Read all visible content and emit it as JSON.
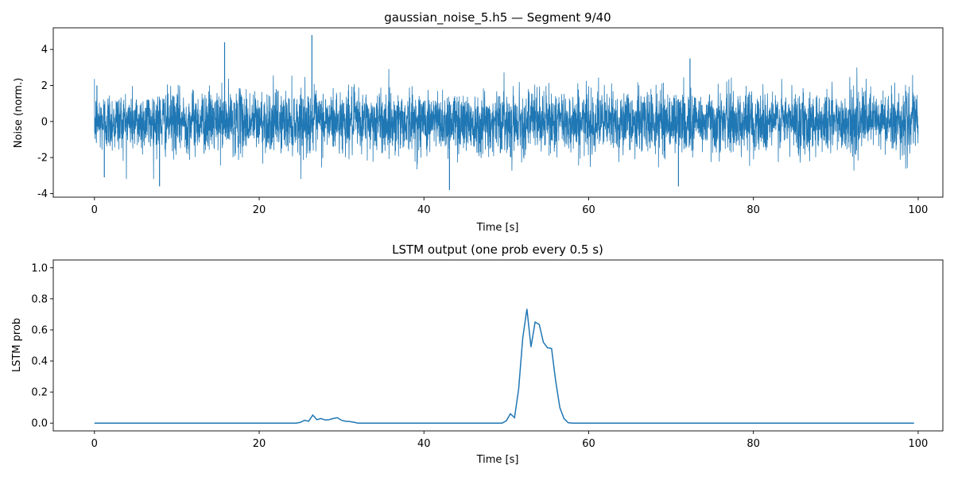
{
  "chart_data": [
    {
      "type": "line",
      "title": "gaussian_noise_5.h5 — Segment 9/40",
      "xlabel": "Time [s]",
      "ylabel": "Noise (norm.)",
      "xlim": [
        -5,
        103
      ],
      "ylim": [
        -4.2,
        5.2
      ],
      "xticks": [
        0,
        20,
        40,
        60,
        80,
        100
      ],
      "yticks": [
        -4,
        -2,
        0,
        2,
        4
      ],
      "color": "#1f77b4",
      "series": [
        {
          "name": "noise",
          "sample_interval_s": 0.02,
          "duration_s": 100,
          "distribution": "gaussian",
          "std": 0.85,
          "spikes": [
            {
              "t": 0.3,
              "y": 2.0
            },
            {
              "t": 1.2,
              "y": -3.1
            },
            {
              "t": 7.9,
              "y": -3.6
            },
            {
              "t": 15.8,
              "y": 4.4
            },
            {
              "t": 26.4,
              "y": 4.8
            },
            {
              "t": 43.1,
              "y": -3.8
            },
            {
              "t": 70.9,
              "y": -3.6
            },
            {
              "t": 72.3,
              "y": 3.5
            }
          ]
        }
      ]
    },
    {
      "type": "line",
      "title": "LSTM output (one prob every 0.5 s)",
      "xlabel": "Time [s]",
      "ylabel": "LSTM prob",
      "xlim": [
        -5,
        103
      ],
      "ylim": [
        -0.05,
        1.05
      ],
      "xticks": [
        0,
        20,
        40,
        60,
        80,
        100
      ],
      "yticks": [
        0.0,
        0.2,
        0.4,
        0.6,
        0.8,
        1.0
      ],
      "color": "#1f77b4",
      "series": [
        {
          "name": "lstm_prob",
          "points": [
            [
              0,
              0.0
            ],
            [
              24.5,
              0.0
            ],
            [
              25.0,
              0.005
            ],
            [
              25.5,
              0.018
            ],
            [
              26.0,
              0.012
            ],
            [
              26.5,
              0.052
            ],
            [
              27.0,
              0.022
            ],
            [
              27.5,
              0.03
            ],
            [
              28.0,
              0.02
            ],
            [
              28.5,
              0.022
            ],
            [
              29.0,
              0.03
            ],
            [
              29.5,
              0.035
            ],
            [
              30.0,
              0.018
            ],
            [
              30.5,
              0.012
            ],
            [
              31.0,
              0.01
            ],
            [
              31.5,
              0.006
            ],
            [
              32.0,
              0.0
            ],
            [
              49.5,
              0.0
            ],
            [
              50.0,
              0.015
            ],
            [
              50.5,
              0.06
            ],
            [
              51.0,
              0.035
            ],
            [
              51.5,
              0.22
            ],
            [
              52.0,
              0.55
            ],
            [
              52.5,
              0.735
            ],
            [
              53.0,
              0.49
            ],
            [
              53.5,
              0.65
            ],
            [
              54.0,
              0.635
            ],
            [
              54.5,
              0.52
            ],
            [
              55.0,
              0.485
            ],
            [
              55.5,
              0.48
            ],
            [
              56.0,
              0.27
            ],
            [
              56.5,
              0.1
            ],
            [
              57.0,
              0.03
            ],
            [
              57.5,
              0.003
            ],
            [
              58.0,
              0.0
            ],
            [
              99.5,
              0.0
            ]
          ]
        }
      ]
    }
  ]
}
